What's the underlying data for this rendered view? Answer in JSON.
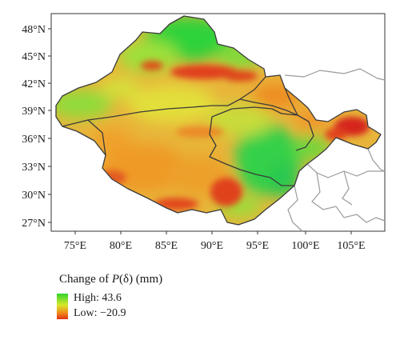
{
  "map": {
    "lat_labels": [
      "48°N",
      "45°N",
      "42°N",
      "39°N",
      "36°N",
      "33°N",
      "30°N",
      "27°N"
    ],
    "lon_labels": [
      "75°E",
      "80°E",
      "85°E",
      "90°E",
      "95°E",
      "100°E",
      "105°E"
    ]
  },
  "legend": {
    "title_prefix": "Change of ",
    "title_symbol": "P",
    "title_suffix": "(δ) (mm)",
    "high_label": "High: 43.6",
    "low_label": "Low: −20.9",
    "high_color": "#2ed42e",
    "low_color": "#e23216"
  }
}
